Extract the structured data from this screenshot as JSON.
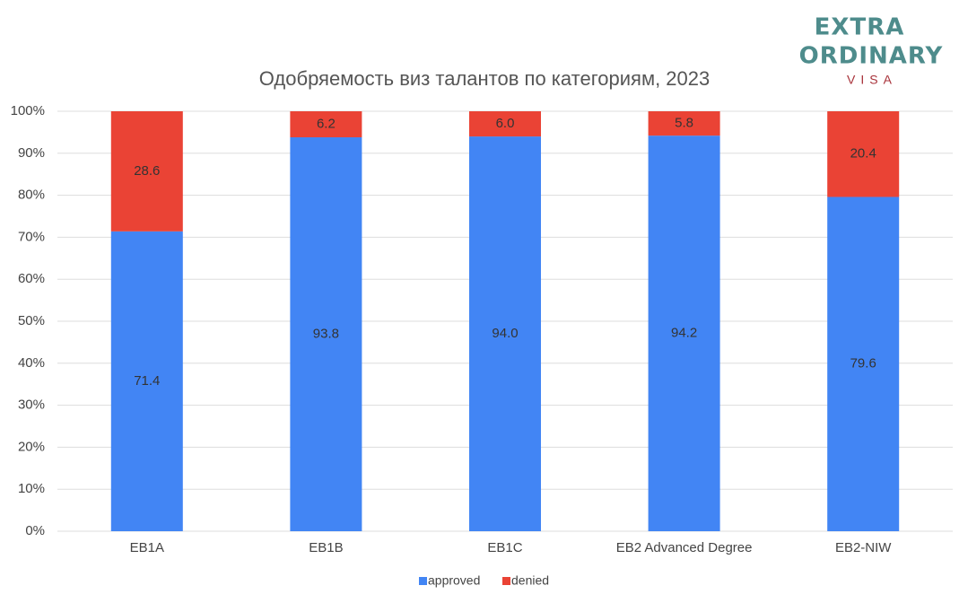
{
  "logo": {
    "line1": "EXTRA",
    "line2": "ORDINARY",
    "line3": "VISA"
  },
  "chart_data": {
    "type": "stacked_bar",
    "title": "Одобряемость виз талантов по категориям, 2023",
    "categories": [
      "EB1A",
      "EB1B",
      "EB1C",
      "EB2 Advanced Degree",
      "EB2-NIW"
    ],
    "series": [
      {
        "name": "approved",
        "color": "#4285f4",
        "values": [
          71.4,
          93.8,
          94.0,
          94.2,
          79.6
        ],
        "value_labels": [
          "71.4",
          "93.8",
          "94.0",
          "94.2",
          "79.6"
        ]
      },
      {
        "name": "denied",
        "color": "#ea4335",
        "values": [
          28.6,
          6.2,
          6.0,
          5.8,
          20.4
        ],
        "value_labels": [
          "28.6",
          "6.2",
          "6.0",
          "5.8",
          "20.4"
        ]
      }
    ],
    "ylim": [
      0,
      100
    ],
    "yticks": [
      {
        "value": 0,
        "label": "0%"
      },
      {
        "value": 10,
        "label": "10%"
      },
      {
        "value": 20,
        "label": "20%"
      },
      {
        "value": 30,
        "label": "30%"
      },
      {
        "value": 40,
        "label": "40%"
      },
      {
        "value": 50,
        "label": "50%"
      },
      {
        "value": 60,
        "label": "60%"
      },
      {
        "value": 70,
        "label": "70%"
      },
      {
        "value": 80,
        "label": "80%"
      },
      {
        "value": 90,
        "label": "90%"
      },
      {
        "value": 100,
        "label": "100%"
      }
    ],
    "grid": true,
    "legend": "bottom"
  }
}
